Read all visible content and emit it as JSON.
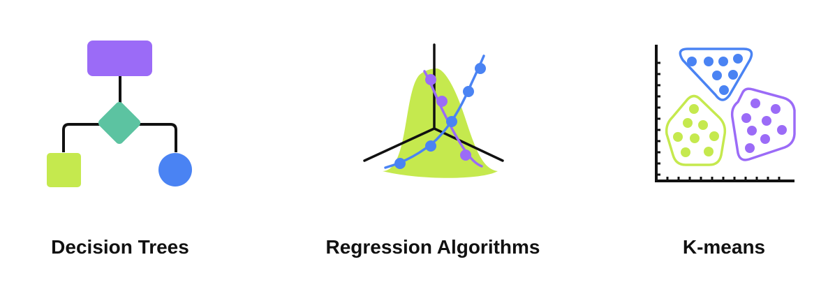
{
  "colors": {
    "purple": "#9b6bf7",
    "teal": "#5cc3a1",
    "lime": "#c5e94e",
    "blue": "#4a83f3",
    "line": "#111111"
  },
  "panels": [
    {
      "title": "Decision Trees",
      "icon": "decision-tree-icon"
    },
    {
      "title": "Regression Algorithms",
      "icon": "regression-3d-plot-icon"
    },
    {
      "title": "K-means",
      "icon": "kmeans-cluster-plot-icon"
    }
  ]
}
